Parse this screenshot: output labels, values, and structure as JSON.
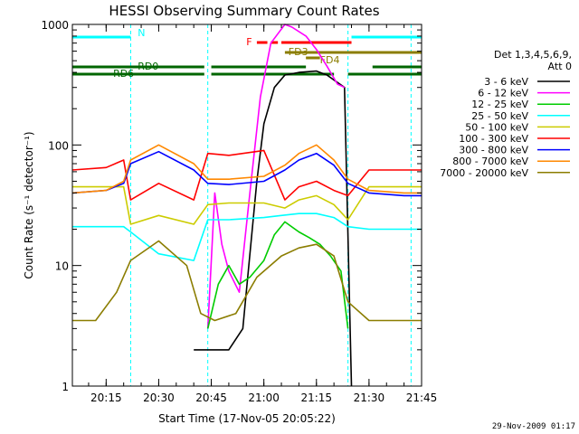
{
  "chart_data": {
    "type": "line",
    "title": "HESSI Observing Summary Count Rates",
    "xlabel": "Start Time (17-Nov-05 20:05:22)",
    "ylabel": "Count Rate (s⁻¹ detector⁻¹)",
    "yscale": "log",
    "ylim": [
      1,
      1000
    ],
    "xlim": [
      "20:05:22",
      "21:45:00"
    ],
    "x_ticks": [
      "20:15",
      "20:30",
      "20:45",
      "21:00",
      "21:15",
      "21:30",
      "21:45"
    ],
    "y_ticks": [
      "1",
      "10",
      "100",
      "1000"
    ],
    "legend_header": [
      "Det 1,3,4,5,6,9,",
      "Att 0"
    ],
    "legend_position": "right",
    "series": [
      {
        "name": "3 - 6 keV",
        "color": "#000000",
        "x": [
          "20:40",
          "20:45",
          "20:50",
          "20:54",
          "20:58",
          "21:00",
          "21:03",
          "21:06",
          "21:10",
          "21:15",
          "21:18",
          "21:21",
          "21:23",
          "21:25"
        ],
        "y": [
          2,
          2,
          2,
          3,
          50,
          150,
          300,
          380,
          400,
          410,
          380,
          330,
          300,
          1
        ]
      },
      {
        "name": "6 - 12 keV",
        "color": "#ff00ff",
        "x": [
          "20:44",
          "20:46",
          "20:48",
          "20:50",
          "20:53",
          "20:56",
          "20:59",
          "21:02",
          "21:06",
          "21:08",
          "21:12",
          "21:15",
          "21:18",
          "21:21",
          "21:23"
        ],
        "y": [
          3,
          40,
          15,
          9,
          6,
          40,
          250,
          700,
          1000,
          950,
          800,
          620,
          450,
          320,
          300
        ]
      },
      {
        "name": "12 - 25 keV",
        "color": "#00cc00",
        "x": [
          "20:44",
          "20:47",
          "20:50",
          "20:53",
          "20:56",
          "21:00",
          "21:03",
          "21:06",
          "21:10",
          "21:13",
          "21:16",
          "21:19",
          "21:22",
          "21:24"
        ],
        "y": [
          3,
          7,
          10,
          7,
          8,
          11,
          18,
          23,
          19,
          17,
          15,
          12,
          9,
          3
        ]
      },
      {
        "name": "25 - 50 keV",
        "color": "#00ffff",
        "x": [
          "20:05:22",
          "20:15",
          "20:20",
          "20:22",
          "20:30",
          "20:40",
          "20:44",
          "20:50",
          "21:00",
          "21:05",
          "21:10",
          "21:15",
          "21:20",
          "21:24",
          "21:30",
          "21:40",
          "21:45"
        ],
        "y": [
          21,
          21,
          21,
          19,
          12.5,
          11,
          24,
          24,
          25,
          26,
          27,
          27,
          25,
          21,
          20,
          20,
          20
        ]
      },
      {
        "name": "50 - 100 keV",
        "color": "#cccc00",
        "x": [
          "20:05:22",
          "20:15",
          "20:20",
          "20:22",
          "20:30",
          "20:40",
          "20:44",
          "20:50",
          "21:00",
          "21:06",
          "21:10",
          "21:15",
          "21:20",
          "21:24",
          "21:30",
          "21:40",
          "21:45"
        ],
        "y": [
          45,
          45,
          45,
          22,
          26,
          22,
          32,
          33,
          33,
          30,
          35,
          38,
          32,
          24,
          45,
          45,
          45
        ]
      },
      {
        "name": "100 - 300 keV",
        "color": "#ff0000",
        "x": [
          "20:05:22",
          "20:15",
          "20:20",
          "20:22",
          "20:30",
          "20:40",
          "20:44",
          "20:50",
          "21:00",
          "21:06",
          "21:10",
          "21:15",
          "21:20",
          "21:24",
          "21:30",
          "21:40",
          "21:45"
        ],
        "y": [
          62,
          65,
          75,
          35,
          48,
          35,
          85,
          82,
          90,
          35,
          45,
          50,
          42,
          38,
          62,
          62,
          62
        ]
      },
      {
        "name": "300 - 800 keV",
        "color": "#0000ff",
        "x": [
          "20:05:22",
          "20:15",
          "20:20",
          "20:22",
          "20:30",
          "20:40",
          "20:44",
          "20:50",
          "21:00",
          "21:06",
          "21:10",
          "21:15",
          "21:20",
          "21:24",
          "21:30",
          "21:40",
          "21:45"
        ],
        "y": [
          40,
          42,
          48,
          70,
          88,
          62,
          48,
          47,
          50,
          62,
          75,
          85,
          68,
          48,
          40,
          38,
          38
        ]
      },
      {
        "name": "800 - 7000 keV",
        "color": "#ff8800",
        "x": [
          "20:05:22",
          "20:15",
          "20:20",
          "20:22",
          "20:30",
          "20:40",
          "20:44",
          "20:50",
          "21:00",
          "21:06",
          "21:10",
          "21:15",
          "21:20",
          "21:24",
          "21:30",
          "21:40",
          "21:45"
        ],
        "y": [
          40,
          42,
          50,
          75,
          100,
          70,
          52,
          52,
          55,
          68,
          85,
          100,
          75,
          52,
          42,
          40,
          40
        ]
      },
      {
        "name": "7000 - 20000 keV",
        "color": "#8b7d00",
        "x": [
          "20:05:22",
          "20:12",
          "20:18",
          "20:22",
          "20:30",
          "20:38",
          "20:42",
          "20:46",
          "20:52",
          "20:58",
          "21:05",
          "21:10",
          "21:15",
          "21:20",
          "21:24",
          "21:30",
          "21:45"
        ],
        "y": [
          3.5,
          3.5,
          6,
          11,
          16,
          10,
          4,
          3.5,
          4,
          8,
          12,
          14,
          15,
          12,
          5,
          3.5,
          3.5
        ]
      }
    ],
    "flags": [
      {
        "label": "N",
        "color": "#00ffff",
        "segments": [
          [
            "20:05:22",
            "20:22"
          ],
          [
            "21:25",
            "21:45"
          ]
        ]
      },
      {
        "label": "F",
        "color": "#ff0000",
        "segments": [
          [
            "20:58",
            "21:01"
          ],
          [
            "21:02",
            "21:04"
          ],
          [
            "21:05",
            "21:25"
          ]
        ]
      },
      {
        "label": "FD3",
        "color": "#8b7d00",
        "segments": [
          [
            "21:06",
            "21:45"
          ]
        ]
      },
      {
        "label": "FD4",
        "color": "#8b7d00",
        "segments": [
          [
            "21:12",
            "21:16"
          ]
        ]
      },
      {
        "label": "RD0",
        "color": "#006600",
        "segments": [
          [
            "20:05:22",
            "20:43"
          ],
          [
            "20:45",
            "21:12"
          ],
          [
            "21:31",
            "21:45"
          ]
        ]
      },
      {
        "label": "RD6",
        "color": "#006600",
        "segments": [
          [
            "20:05:22",
            "20:43"
          ],
          [
            "20:45",
            "21:20"
          ],
          [
            "21:24",
            "21:45"
          ]
        ]
      }
    ],
    "vertical_markers": [
      "20:22",
      "20:44",
      "21:24",
      "21:42"
    ]
  },
  "timestamp": "29-Nov-2009 01:17"
}
